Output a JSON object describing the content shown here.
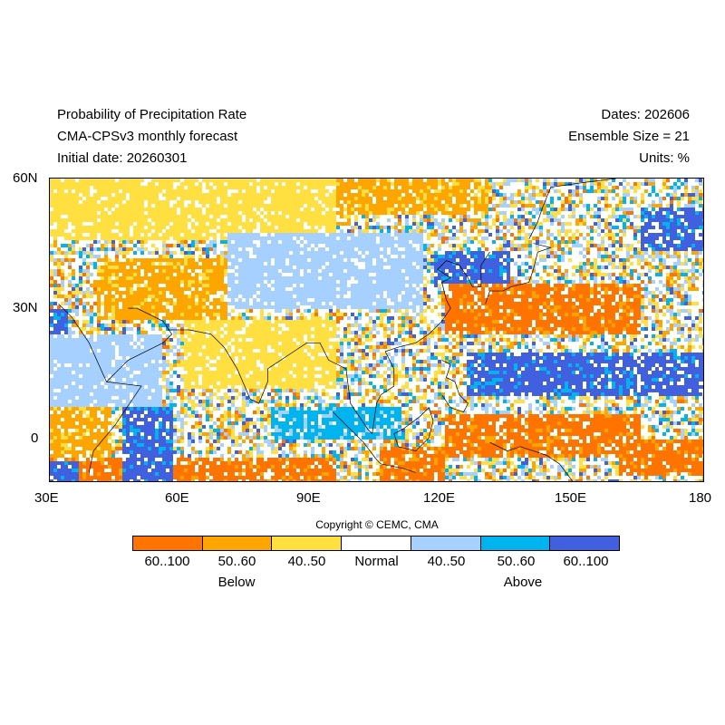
{
  "header": {
    "title": "Probability of Precipitation Rate",
    "model": "CMA-CPSv3 monthly forecast",
    "initial_date": "Initial date: 20260301",
    "dates": "Dates: 202606",
    "ensemble": "Ensemble Size = 21",
    "units": "Units: %"
  },
  "axes": {
    "x_ticks": [
      "30E",
      "60E",
      "90E",
      "120E",
      "150E",
      "180"
    ],
    "y_ticks": [
      "60N",
      "30N",
      "0"
    ]
  },
  "copyright": "Copyright © CEMC, CMA",
  "legend": {
    "bins": [
      {
        "label": "60..100",
        "color": "#ff7300"
      },
      {
        "label": "50..60",
        "color": "#ffa500"
      },
      {
        "label": "40..50",
        "color": "#ffe040"
      },
      {
        "label": "Normal",
        "color": "#ffffff"
      },
      {
        "label": "40..50",
        "color": "#a5d0ff"
      },
      {
        "label": "50..60",
        "color": "#00b4f0"
      },
      {
        "label": "60..100",
        "color": "#4060e0"
      }
    ],
    "below_label": "Below",
    "above_label": "Above"
  },
  "map": {
    "lon_range": [
      30,
      180
    ],
    "lat_range": [
      -10,
      60
    ],
    "regions": [
      {
        "lon": [
          30,
          95
        ],
        "lat": [
          -10,
          -4
        ],
        "cls": 0
      },
      {
        "lon": [
          46,
          58
        ],
        "lat": [
          -10,
          8
        ],
        "cls": 6
      },
      {
        "lon": [
          30,
          44
        ],
        "lat": [
          -4,
          8
        ],
        "cls": 1
      },
      {
        "lon": [
          30,
          36
        ],
        "lat": [
          -10,
          -5
        ],
        "cls": 6
      },
      {
        "lon": [
          40,
          70
        ],
        "lat": [
          28,
          42
        ],
        "cls": 1
      },
      {
        "lon": [
          60,
          95
        ],
        "lat": [
          12,
          28
        ],
        "cls": 2
      },
      {
        "lon": [
          105,
          120
        ],
        "lat": [
          -10,
          -2
        ],
        "cls": 0
      },
      {
        "lon": [
          120,
          165
        ],
        "lat": [
          -4,
          6
        ],
        "cls": 0
      },
      {
        "lon": [
          120,
          165
        ],
        "lat": [
          24,
          36
        ],
        "cls": 0
      },
      {
        "lon": [
          125,
          180
        ],
        "lat": [
          10,
          20
        ],
        "cls": 6
      },
      {
        "lon": [
          160,
          180
        ],
        "lat": [
          -8,
          0
        ],
        "cls": 0
      },
      {
        "lon": [
          118,
          135
        ],
        "lat": [
          36,
          44
        ],
        "cls": 6
      },
      {
        "lon": [
          165,
          180
        ],
        "lat": [
          44,
          54
        ],
        "cls": 6
      },
      {
        "lon": [
          30,
          34
        ],
        "lat": [
          20,
          30
        ],
        "cls": 6
      },
      {
        "lon": [
          30,
          95
        ],
        "lat": [
          46,
          60
        ],
        "cls": 2
      },
      {
        "lon": [
          95,
          130
        ],
        "lat": [
          52,
          60
        ],
        "cls": 1
      },
      {
        "lon": [
          70,
          115
        ],
        "lat": [
          30,
          48
        ],
        "cls": 4
      },
      {
        "lon": [
          30,
          55
        ],
        "lat": [
          8,
          24
        ],
        "cls": 4
      },
      {
        "lon": [
          80,
          110
        ],
        "lat": [
          0,
          8
        ],
        "cls": 5
      }
    ]
  }
}
